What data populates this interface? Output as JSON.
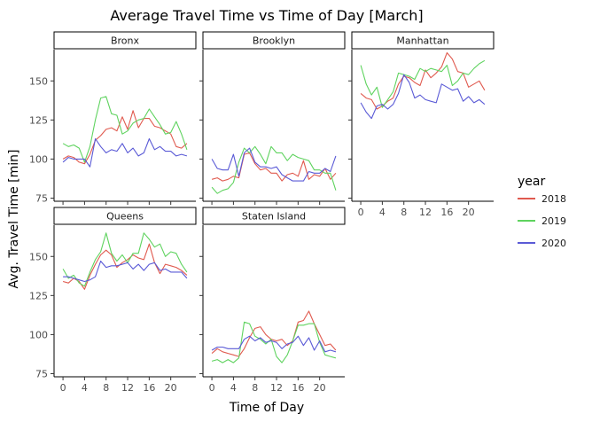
{
  "chart_data": {
    "type": "line",
    "title": "Average Travel Time vs Time of Day [March]",
    "xlabel": "Time of Day",
    "ylabel": "Avg. Travel Time [min]",
    "x_ticks": [
      0,
      4,
      8,
      12,
      16,
      20
    ],
    "y_ticks": [
      75,
      100,
      125,
      150
    ],
    "xlim": [
      -1,
      24
    ],
    "ylim": [
      73,
      170
    ],
    "legend": {
      "title": "year",
      "position": "right",
      "entries": [
        {
          "label": "2018",
          "color": "#e05a4f"
        },
        {
          "label": "2019",
          "color": "#5fd35f"
        },
        {
          "label": "2020",
          "color": "#5a5ad6"
        }
      ]
    },
    "x": [
      0,
      1,
      2,
      3,
      4,
      5,
      6,
      7,
      8,
      9,
      10,
      11,
      12,
      13,
      14,
      15,
      16,
      17,
      18,
      19,
      20,
      21,
      22,
      23
    ],
    "panels": [
      {
        "name": "Bronx",
        "show_y_ticks": true,
        "show_x_ticks": false,
        "series": [
          {
            "name": "2018",
            "values": [
              100,
              102,
              101,
              98,
              97,
              103,
              112,
              115,
              119,
              120,
              118,
              127,
              119,
              131,
              120,
              126,
              126,
              121,
              120,
              118,
              116,
              108,
              107,
              110
            ]
          },
          {
            "name": "2019",
            "values": [
              110,
              108,
              109,
              107,
              98,
              108,
              125,
              139,
              140,
              129,
              128,
              116,
              118,
              123,
              125,
              126,
              132,
              127,
              122,
              116,
              117,
              124,
              116,
              106
            ]
          },
          {
            "name": "2020",
            "values": [
              98,
              101,
              100,
              100,
              100,
              95,
              113,
              108,
              104,
              106,
              105,
              110,
              104,
              107,
              102,
              104,
              113,
              106,
              108,
              105,
              105,
              102,
              103,
              102
            ]
          }
        ]
      },
      {
        "name": "Brooklyn",
        "show_y_ticks": false,
        "show_x_ticks": false,
        "series": [
          {
            "name": "2018",
            "values": [
              87,
              88,
              86,
              87,
              89,
              88,
              103,
              104,
              97,
              93,
              94,
              91,
              91,
              86,
              90,
              91,
              89,
              99,
              87,
              90,
              89,
              94,
              87,
              91
            ]
          },
          {
            "name": "2019",
            "values": [
              82,
              78,
              80,
              81,
              85,
              98,
              107,
              104,
              108,
              103,
              97,
              108,
              104,
              104,
              99,
              103,
              101,
              100,
              99,
              93,
              93,
              91,
              91,
              80
            ]
          },
          {
            "name": "2020",
            "values": [
              100,
              94,
              93,
              93,
              103,
              89,
              104,
              107,
              98,
              95,
              95,
              94,
              95,
              90,
              88,
              86,
              86,
              86,
              92,
              91,
              91,
              94,
              92,
              102
            ]
          }
        ]
      },
      {
        "name": "Manhattan",
        "show_y_ticks": false,
        "show_x_ticks": true,
        "series": [
          {
            "name": "2018",
            "values": [
              142,
              139,
              138,
              132,
              134,
              137,
              139,
              148,
              153,
              152,
              149,
              147,
              157,
              152,
              155,
              159,
              168,
              164,
              156,
              155,
              146,
              148,
              150,
              144
            ]
          },
          {
            "name": "2019",
            "values": [
              160,
              148,
              141,
              146,
              133,
              138,
              143,
              155,
              154,
              153,
              151,
              158,
              156,
              158,
              157,
              156,
              160,
              147,
              150,
              155,
              154,
              158,
              161,
              163
            ]
          },
          {
            "name": "2020",
            "values": [
              136,
              130,
              126,
              134,
              135,
              132,
              135,
              142,
              154,
              149,
              139,
              141,
              138,
              137,
              136,
              148,
              146,
              144,
              145,
              137,
              140,
              136,
              138,
              135
            ]
          }
        ]
      },
      {
        "name": "Queens",
        "show_y_ticks": true,
        "show_x_ticks": true,
        "series": [
          {
            "name": "2018",
            "values": [
              134,
              133,
              136,
              134,
              129,
              138,
              145,
              151,
              154,
              151,
              143,
              146,
              148,
              151,
              149,
              148,
              158,
              146,
              139,
              145,
              144,
              143,
              141,
              138
            ]
          },
          {
            "name": "2019",
            "values": [
              142,
              136,
              138,
              133,
              131,
              140,
              148,
              153,
              165,
              152,
              147,
              151,
              146,
              152,
              152,
              165,
              161,
              156,
              158,
              150,
              153,
              152,
              145,
              140
            ]
          },
          {
            "name": "2020",
            "values": [
              137,
              137,
              136,
              135,
              134,
              135,
              137,
              147,
              143,
              144,
              144,
              145,
              146,
              142,
              145,
              141,
              145,
              146,
              141,
              142,
              140,
              140,
              140,
              136
            ]
          }
        ]
      },
      {
        "name": "Staten Island",
        "show_y_ticks": false,
        "show_x_ticks": true,
        "series": [
          {
            "name": "2018",
            "values": [
              88,
              91,
              89,
              88,
              87,
              86,
              91,
              98,
              104,
              105,
              100,
              97,
              96,
              97,
              93,
              96,
              108,
              109,
              115,
              107,
              100,
              93,
              94,
              90
            ]
          },
          {
            "name": "2019",
            "values": [
              83,
              84,
              82,
              84,
              82,
              85,
              108,
              107,
              99,
              97,
              94,
              97,
              86,
              82,
              87,
              96,
              106,
              106,
              107,
              107,
              95,
              87,
              86,
              85
            ]
          },
          {
            "name": "2020",
            "values": [
              90,
              92,
              92,
              91,
              91,
              91,
              97,
              99,
              96,
              98,
              95,
              96,
              95,
              91,
              94,
              95,
              99,
              93,
              98,
              90,
              96,
              89,
              90,
              89
            ]
          }
        ]
      }
    ]
  }
}
